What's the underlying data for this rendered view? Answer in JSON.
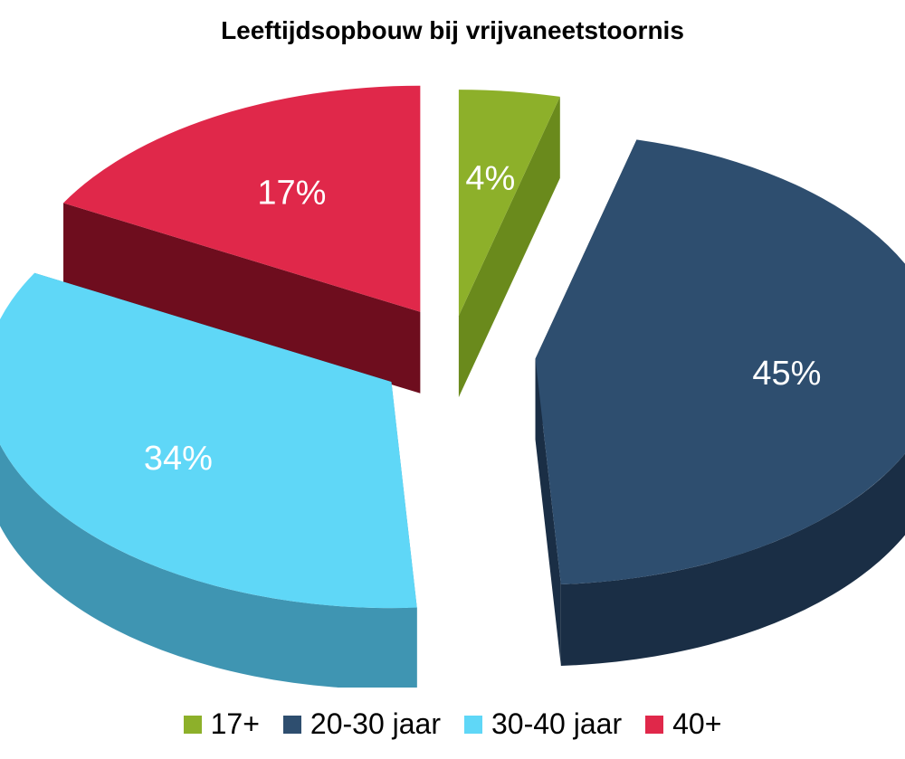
{
  "chart_data": {
    "type": "pie",
    "title": "Leeftijdsopbouw bij vrijvaneetstoornis",
    "slices": [
      {
        "label": "17+",
        "value": 4,
        "value_label": "4%",
        "color": "#8db02a",
        "side_color": "#6a8a1c"
      },
      {
        "label": "20-30 jaar",
        "value": 45,
        "value_label": "45%",
        "color": "#2e4e6f",
        "side_color": "#1a2e45"
      },
      {
        "label": "30-40 jaar",
        "value": 34,
        "value_label": "34%",
        "color": "#5fd7f7",
        "side_color": "#3f95b2"
      },
      {
        "label": "40+",
        "value": 17,
        "value_label": "17%",
        "color": "#e0284a",
        "side_color": "#6e0d1e"
      }
    ],
    "legend_position": "bottom",
    "style": "3d-exploded"
  }
}
